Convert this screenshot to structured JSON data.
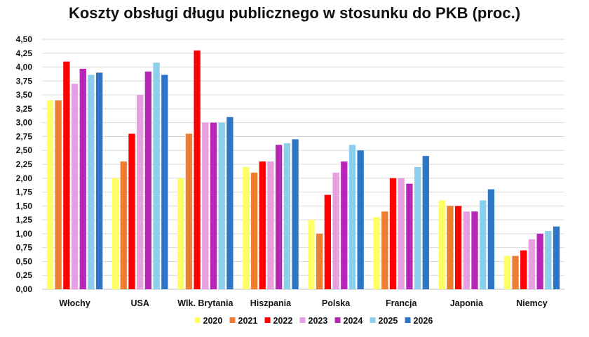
{
  "chart_data": {
    "type": "bar",
    "title": "Koszty obsługi długu publicznego w stosunku do PKB (proc.)",
    "xlabel": "",
    "ylabel": "",
    "ylim": [
      0,
      4.5
    ],
    "yticks": [
      "0,00",
      "0,25",
      "0,50",
      "0,75",
      "1,00",
      "1,25",
      "1,50",
      "1,75",
      "2,00",
      "2,25",
      "2,50",
      "2,75",
      "3,00",
      "3,25",
      "3,50",
      "3,75",
      "4,00",
      "4,25",
      "4,50"
    ],
    "grid": true,
    "legend_position": "bottom",
    "categories": [
      "Włochy",
      "USA",
      "Wlk. Brytania",
      "Hiszpania",
      "Polska",
      "Francja",
      "Japonia",
      "Niemcy"
    ],
    "series": [
      {
        "name": "2020",
        "color": "#ffff66",
        "values": [
          3.4,
          2.0,
          2.0,
          2.2,
          1.25,
          1.3,
          1.6,
          0.6
        ]
      },
      {
        "name": "2021",
        "color": "#ed7d31",
        "values": [
          3.4,
          2.3,
          2.8,
          2.1,
          1.0,
          1.4,
          1.5,
          0.6
        ]
      },
      {
        "name": "2022",
        "color": "#ff0000",
        "values": [
          4.1,
          2.8,
          4.3,
          2.3,
          1.7,
          2.0,
          1.5,
          0.7
        ]
      },
      {
        "name": "2023",
        "color": "#e6a0e0",
        "values": [
          3.7,
          3.5,
          3.0,
          2.3,
          2.1,
          2.0,
          1.4,
          0.9
        ]
      },
      {
        "name": "2024",
        "color": "#b727b7",
        "values": [
          3.97,
          3.92,
          3.0,
          2.6,
          2.3,
          1.9,
          1.4,
          1.0
        ]
      },
      {
        "name": "2025",
        "color": "#8ccfec",
        "values": [
          3.86,
          4.08,
          3.0,
          2.63,
          2.6,
          2.2,
          1.6,
          1.05
        ]
      },
      {
        "name": "2026",
        "color": "#2e75c6",
        "values": [
          3.9,
          3.86,
          3.1,
          2.7,
          2.5,
          2.4,
          1.8,
          1.13
        ]
      }
    ]
  }
}
